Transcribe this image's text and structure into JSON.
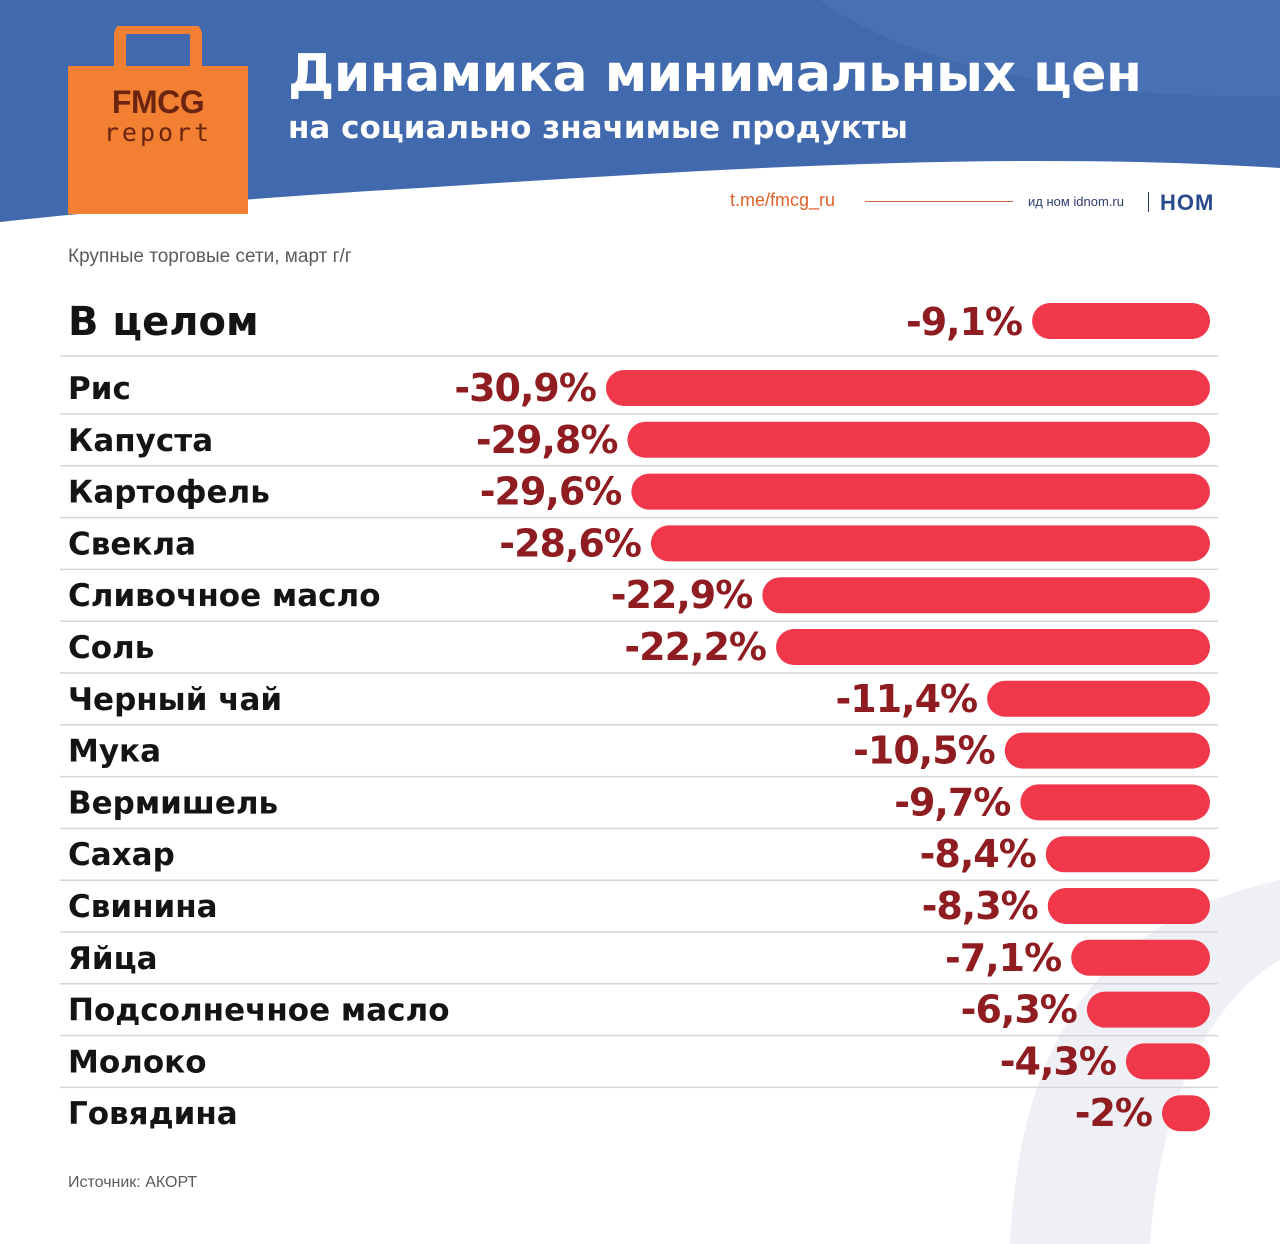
{
  "header": {
    "logo_brand": "FMCG",
    "logo_sub": "report",
    "title": "Динамика минимальных цен",
    "subtitle": "на социально значимые продукты",
    "telegram": "t.me/fmcg_ru",
    "publisher": "ид ном idnom.ru",
    "publisher_logo": "НОМ"
  },
  "caption": "Крупные торговые сети, март г/г",
  "source": "Источник: АКОРТ",
  "colors": {
    "header_blue": "#4169ad",
    "bag_orange": "#f37f33",
    "bar_red": "#f0384a",
    "value_text": "#8e1c20"
  },
  "chart_data": {
    "type": "bar",
    "orientation": "horizontal",
    "title": "Динамика минимальных цен",
    "subtitle": "на социально значимые продукты",
    "unit": "%",
    "categories": [
      "В целом",
      "Рис",
      "Капуста",
      "Картофель",
      "Свекла",
      "Сливочное масло",
      "Соль",
      "Черный чай",
      "Мука",
      "Вермишель",
      "Сахар",
      "Свинина",
      "Яйца",
      "Подсолнечное масло",
      "Молоко",
      "Говядина"
    ],
    "values": [
      -9.1,
      -30.9,
      -29.8,
      -29.6,
      -28.6,
      -22.9,
      -22.2,
      -11.4,
      -10.5,
      -9.7,
      -8.4,
      -8.3,
      -7.1,
      -6.3,
      -4.3,
      -2
    ],
    "labels": [
      "-9,1%",
      "-30,9%",
      "-29,8%",
      "-29,6%",
      "-28,6%",
      "-22,9%",
      "-22,2%",
      "-11,4%",
      "-10,5%",
      "-9,7%",
      "-8,4%",
      "-8,3%",
      "-7,1%",
      "-6,3%",
      "-4,3%",
      "-2%"
    ],
    "xlim": [
      -31,
      0
    ],
    "grid": false,
    "legend": "none"
  }
}
